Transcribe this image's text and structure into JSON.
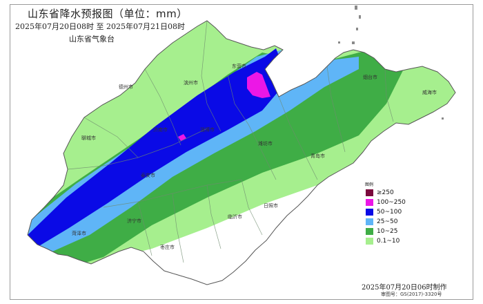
{
  "title": "山东省降水预报图（单位：mm）",
  "period": "2025年07月20日08时  至  2025年07月21日08时",
  "agency": "山东省气象台",
  "made": "2025年07月20日06时制作",
  "map_number": "审图号：GS(2017)-3320号",
  "legend": {
    "heading": "图例",
    "items": [
      {
        "label": "≥250",
        "color": "#7b0a3d"
      },
      {
        "label": "100~250",
        "color": "#ec17e6"
      },
      {
        "label": "50~100",
        "color": "#0a0ae6"
      },
      {
        "label": "25~50",
        "color": "#5fb5f7"
      },
      {
        "label": "10~25",
        "color": "#3fad46"
      },
      {
        "label": "0.1~10",
        "color": "#a6ef8e"
      }
    ]
  },
  "cities": [
    {
      "name": "东营市"
    },
    {
      "name": "德州市"
    },
    {
      "name": "滨州市"
    },
    {
      "name": "聊城市"
    },
    {
      "name": "济南市"
    },
    {
      "name": "淄博市"
    },
    {
      "name": "潍坊市"
    },
    {
      "name": "泰安市"
    },
    {
      "name": "菏泽市"
    },
    {
      "name": "济宁市"
    },
    {
      "name": "临沂市"
    },
    {
      "name": "日照市"
    },
    {
      "name": "枣庄市"
    },
    {
      "name": "青岛市"
    },
    {
      "name": "烟台市"
    },
    {
      "name": "威海市"
    }
  ]
}
